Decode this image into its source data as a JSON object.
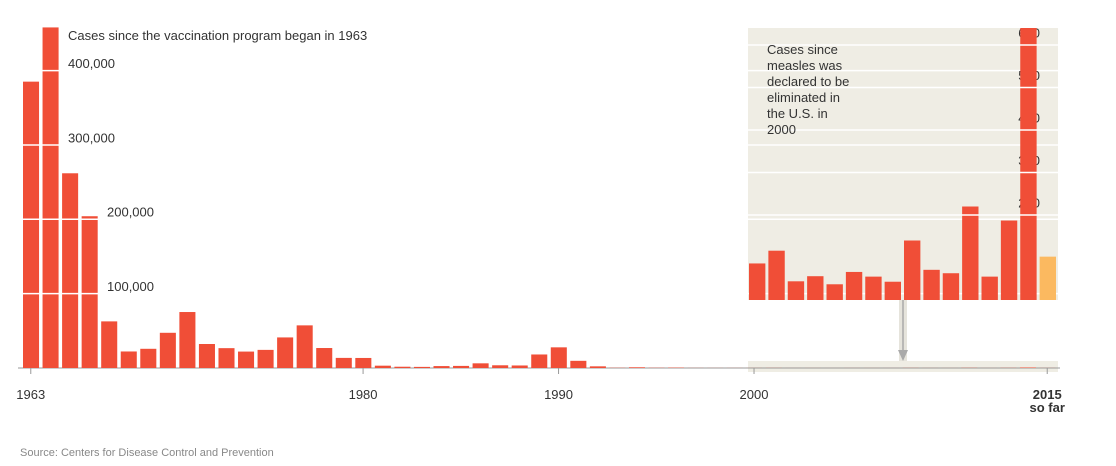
{
  "source": "Source: Centers for Disease Control and Prevention",
  "chart_data": [
    {
      "type": "bar",
      "title": "Cases since the vaccination program began in 1963",
      "color": "#f04e37",
      "x": [
        1963,
        1964,
        1965,
        1966,
        1967,
        1968,
        1969,
        1970,
        1971,
        1972,
        1973,
        1974,
        1975,
        1976,
        1977,
        1978,
        1979,
        1980,
        1981,
        1982,
        1983,
        1984,
        1985,
        1986,
        1987,
        1988,
        1989,
        1990,
        1991,
        1992,
        1993,
        1994,
        1995,
        1996,
        1997,
        1998,
        1999,
        2000,
        2001,
        2002,
        2003,
        2004,
        2005,
        2006,
        2007,
        2008,
        2009,
        2010,
        2011,
        2012,
        2013,
        2014,
        2015
      ],
      "values": [
        385156,
        458083,
        261904,
        204136,
        62705,
        22231,
        25826,
        47351,
        75290,
        32275,
        26690,
        22094,
        24374,
        41126,
        57345,
        26871,
        13597,
        13506,
        3124,
        1714,
        1497,
        2587,
        2822,
        6282,
        3655,
        3396,
        18193,
        27786,
        9643,
        2237,
        312,
        963,
        309,
        508,
        138,
        100,
        100,
        86,
        116,
        44,
        56,
        37,
        66,
        55,
        43,
        140,
        71,
        63,
        220,
        55,
        187,
        667,
        102
      ],
      "ylim": [
        0,
        460000
      ],
      "yticks": [
        {
          "value": 100000,
          "label": "100,000"
        },
        {
          "value": 200000,
          "label": "200,000"
        },
        {
          "value": 300000,
          "label": "300,000"
        },
        {
          "value": 400000,
          "label": "400,000"
        }
      ],
      "xticks": [
        1963,
        1980,
        1990,
        2000,
        {
          "value": 2015,
          "label": "2015 so far"
        }
      ],
      "grid": true
    },
    {
      "type": "bar",
      "title": "Cases since measles was declared to be eliminated in the U.S. in 2000",
      "color": "#f04e37",
      "highlight": {
        "x": 2015,
        "color": "#fbb960"
      },
      "x": [
        2000,
        2001,
        2002,
        2003,
        2004,
        2005,
        2006,
        2007,
        2008,
        2009,
        2010,
        2011,
        2012,
        2013,
        2014,
        2015
      ],
      "values": [
        86,
        116,
        44,
        56,
        37,
        66,
        55,
        43,
        140,
        71,
        63,
        220,
        55,
        187,
        667,
        102
      ],
      "ylim": [
        0,
        640
      ],
      "yticks": [
        200,
        300,
        400,
        500,
        600
      ],
      "grid": true
    }
  ]
}
